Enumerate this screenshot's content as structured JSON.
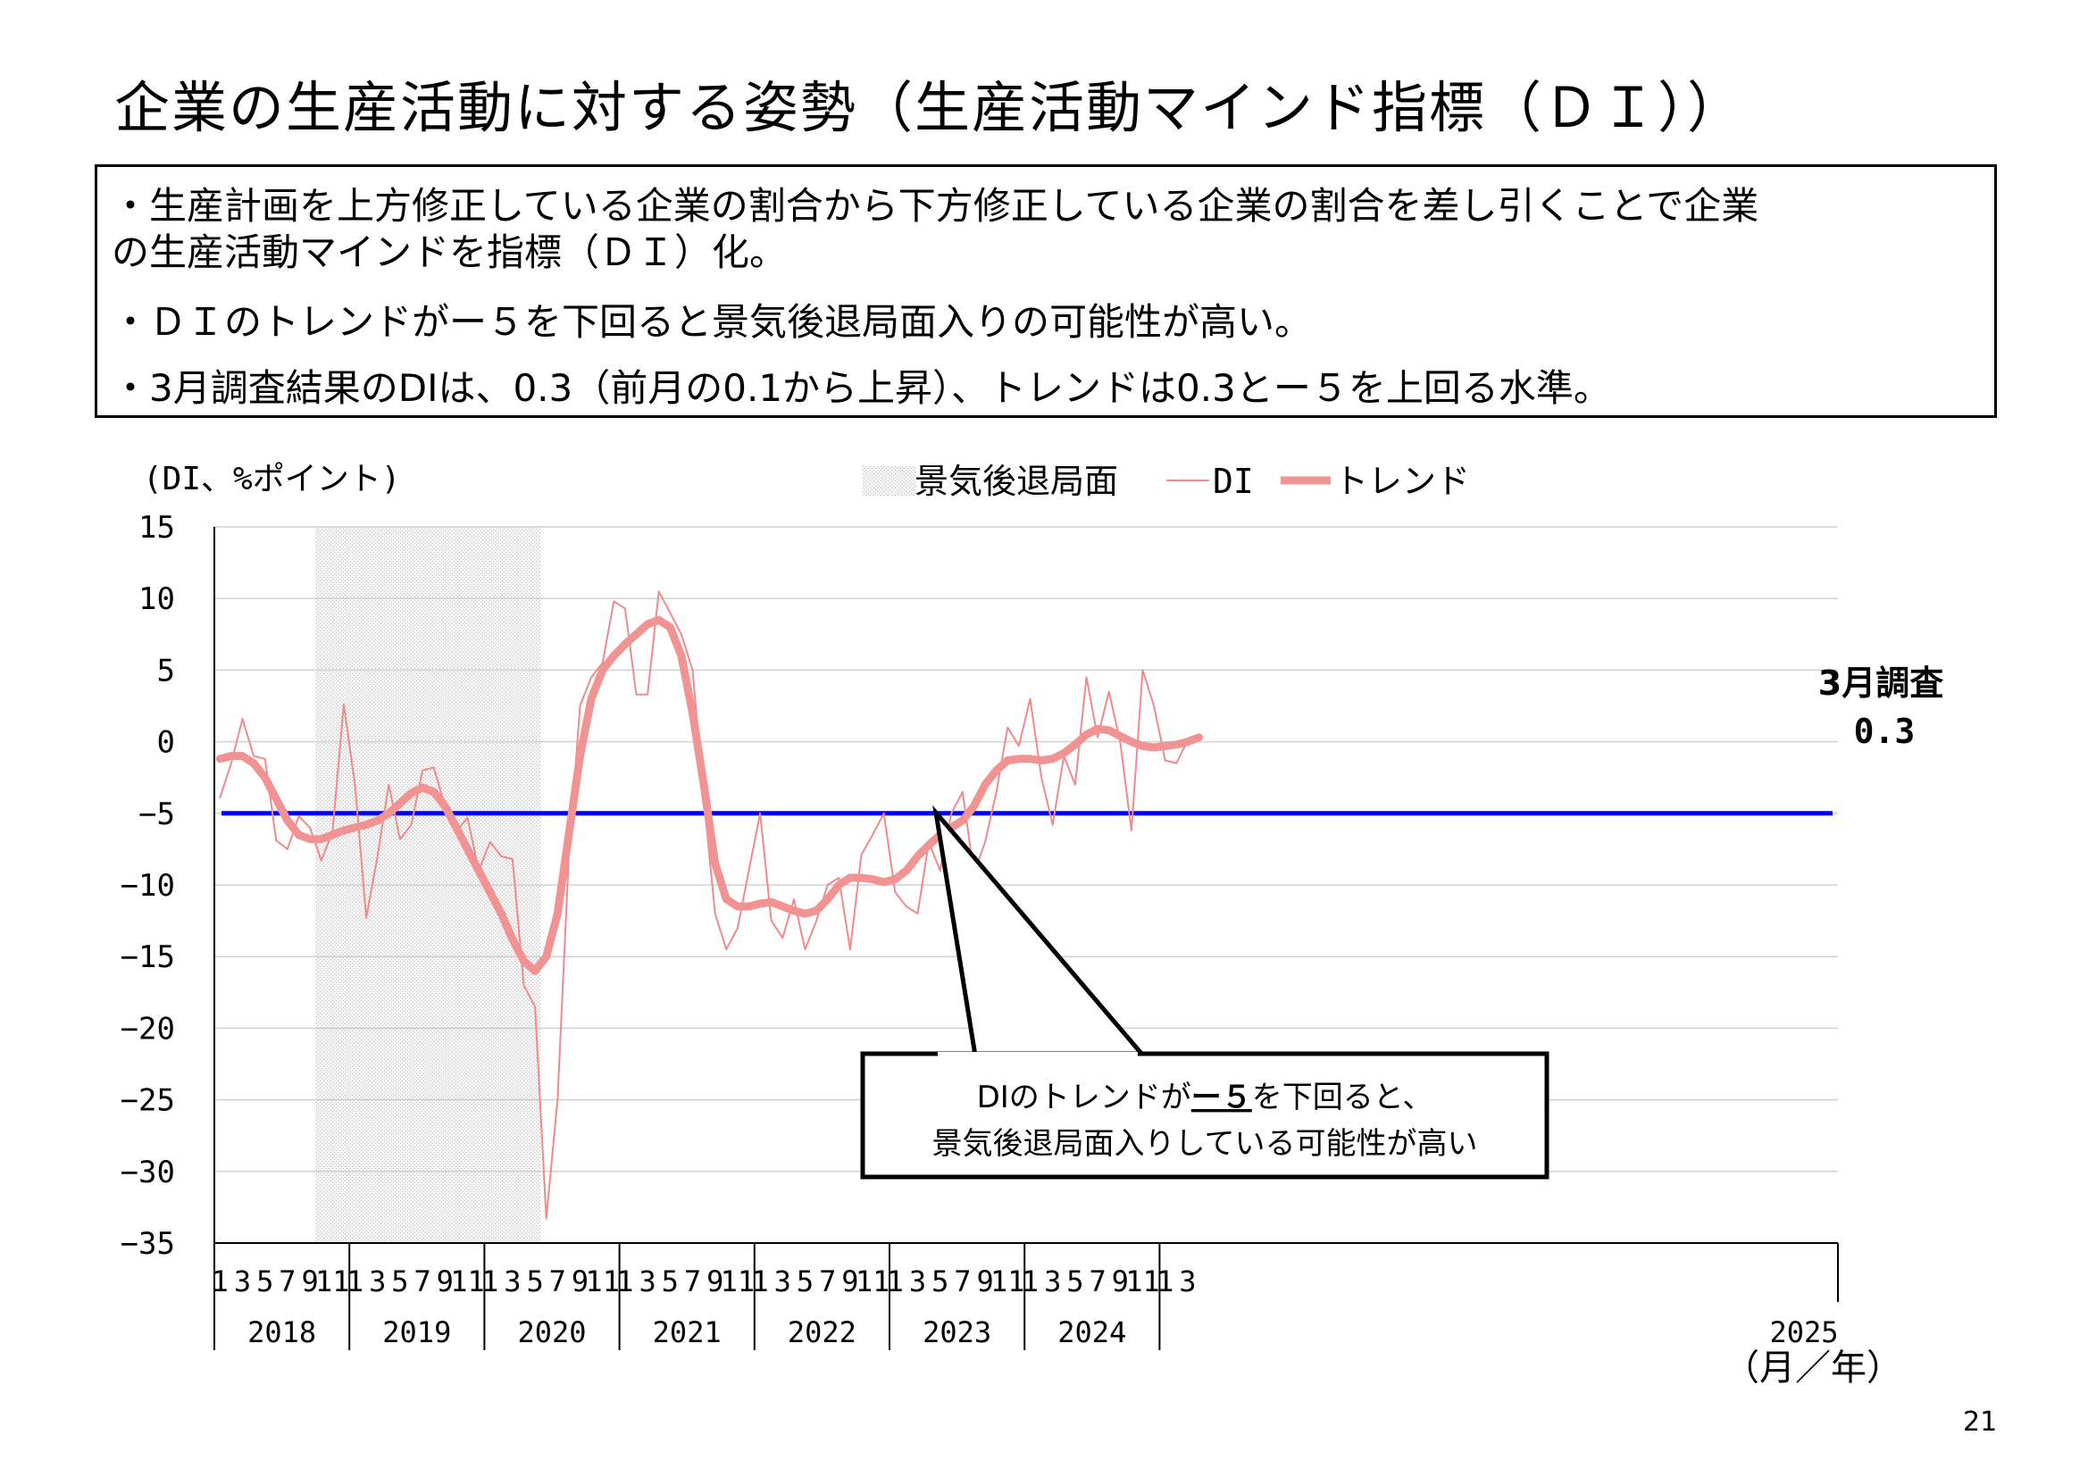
{
  "page": {
    "title": "企業の生産活動に対する姿勢（生産活動マインド指標（ＤＩ））",
    "bullets": [
      "・生産計画を上方修正している企業の割合から下方修正している企業の割合を差し引くことで企業",
      "の生産活動マインドを指標（ＤＩ）化。",
      "・ＤＩのトレンドがー５を下回ると景気後退局面入りの可能性が高い。",
      "・3月調査結果のDIは、0.3（前月の0.1から上昇）、トレンドは0.3とー５を上回る水準。"
    ],
    "page_number": "21"
  },
  "chart_data": {
    "type": "line",
    "yunit": "(DI、%ポイント)",
    "xunit": "（月／年）",
    "ylim": [
      -35,
      15
    ],
    "yticks": [
      15,
      10,
      5,
      0,
      -5,
      -10,
      -15,
      -20,
      -25,
      -30,
      -35
    ],
    "grid": true,
    "legend": {
      "position": "top",
      "items": [
        "景気後退局面",
        "DI",
        "トレンド"
      ]
    },
    "years": [
      "2018",
      "2019",
      "2020",
      "2021",
      "2022",
      "2023",
      "2024",
      "2025"
    ],
    "month_ticks": [
      "1",
      "3",
      "5",
      "7",
      "9",
      "11"
    ],
    "month_ticks_2025": [
      "1",
      "3"
    ],
    "recession": {
      "start": "2018-10",
      "end": "2020-05",
      "label": "景気後退局面"
    },
    "threshold": {
      "value": -5,
      "color": "#0000ee"
    },
    "series": [
      {
        "name": "DI",
        "color": "#f08b8b",
        "values": [
          -3.9,
          -1.5,
          1.6,
          -1.0,
          -1.2,
          -6.9,
          -7.5,
          -5.2,
          -6.0,
          -8.3,
          -6.3,
          2.6,
          -3.0,
          -12.3,
          -8.0,
          -3.0,
          -6.8,
          -5.8,
          -2.0,
          -1.8,
          -4.5,
          -6.3,
          -5.3,
          -9.0,
          -7.0,
          -8.0,
          -8.2,
          -17.0,
          -18.5,
          -33.3,
          -25.0,
          -8.0,
          2.5,
          4.5,
          5.5,
          9.8,
          9.3,
          3.3,
          3.3,
          10.5,
          9.0,
          7.5,
          5.0,
          -4.0,
          -12.0,
          -14.5,
          -13.0,
          -9.0,
          -5.0,
          -12.5,
          -13.7,
          -11.0,
          -14.5,
          -12.5,
          -10.0,
          -9.5,
          -14.5,
          -7.9,
          -6.5,
          -5.0,
          -10.5,
          -11.5,
          -12.0,
          -7.0,
          -9.0,
          -5.0,
          -3.5,
          -9.2,
          -7.0,
          -3.5,
          1.0,
          -0.3,
          3.0,
          -2.5,
          -5.8,
          -1.0,
          -3.0,
          4.5,
          0.3,
          3.5,
          0.0,
          -6.2,
          5.0,
          2.5,
          -1.3,
          -1.5,
          0.1,
          0.3
        ]
      },
      {
        "name": "トレンド",
        "color": "#f29393",
        "values": [
          -1.2,
          -1.0,
          -1.0,
          -1.5,
          -2.5,
          -4.0,
          -5.5,
          -6.5,
          -6.8,
          -6.8,
          -6.5,
          -6.2,
          -6.0,
          -5.8,
          -5.5,
          -5.0,
          -4.3,
          -3.6,
          -3.2,
          -3.5,
          -4.5,
          -6.0,
          -7.5,
          -9.0,
          -10.5,
          -12.0,
          -13.8,
          -15.3,
          -16.0,
          -15.0,
          -12.0,
          -6.5,
          -1.0,
          3.0,
          5.0,
          6.0,
          6.8,
          7.5,
          8.2,
          8.5,
          8.0,
          6.0,
          2.0,
          -3.0,
          -8.5,
          -11.0,
          -11.5,
          -11.5,
          -11.3,
          -11.2,
          -11.5,
          -11.8,
          -12.0,
          -11.8,
          -11.0,
          -10.0,
          -9.5,
          -9.5,
          -9.6,
          -9.8,
          -9.6,
          -9.0,
          -8.0,
          -7.2,
          -6.5,
          -6.0,
          -5.5,
          -4.5,
          -3.0,
          -2.0,
          -1.3,
          -1.2,
          -1.2,
          -1.3,
          -1.2,
          -0.8,
          -0.2,
          0.5,
          0.9,
          0.8,
          0.4,
          0.0,
          -0.3,
          -0.4,
          -0.3,
          -0.2,
          0.0,
          0.3
        ]
      }
    ],
    "annotations": {
      "latest_label": "3月調査",
      "latest_value": "0.3",
      "callout_line1_pre": "DIのトレンドが",
      "callout_line1_em": "ー５",
      "callout_line1_post": "を下回ると、",
      "callout_line2": "景気後退局面入りしている可能性が高い"
    }
  }
}
